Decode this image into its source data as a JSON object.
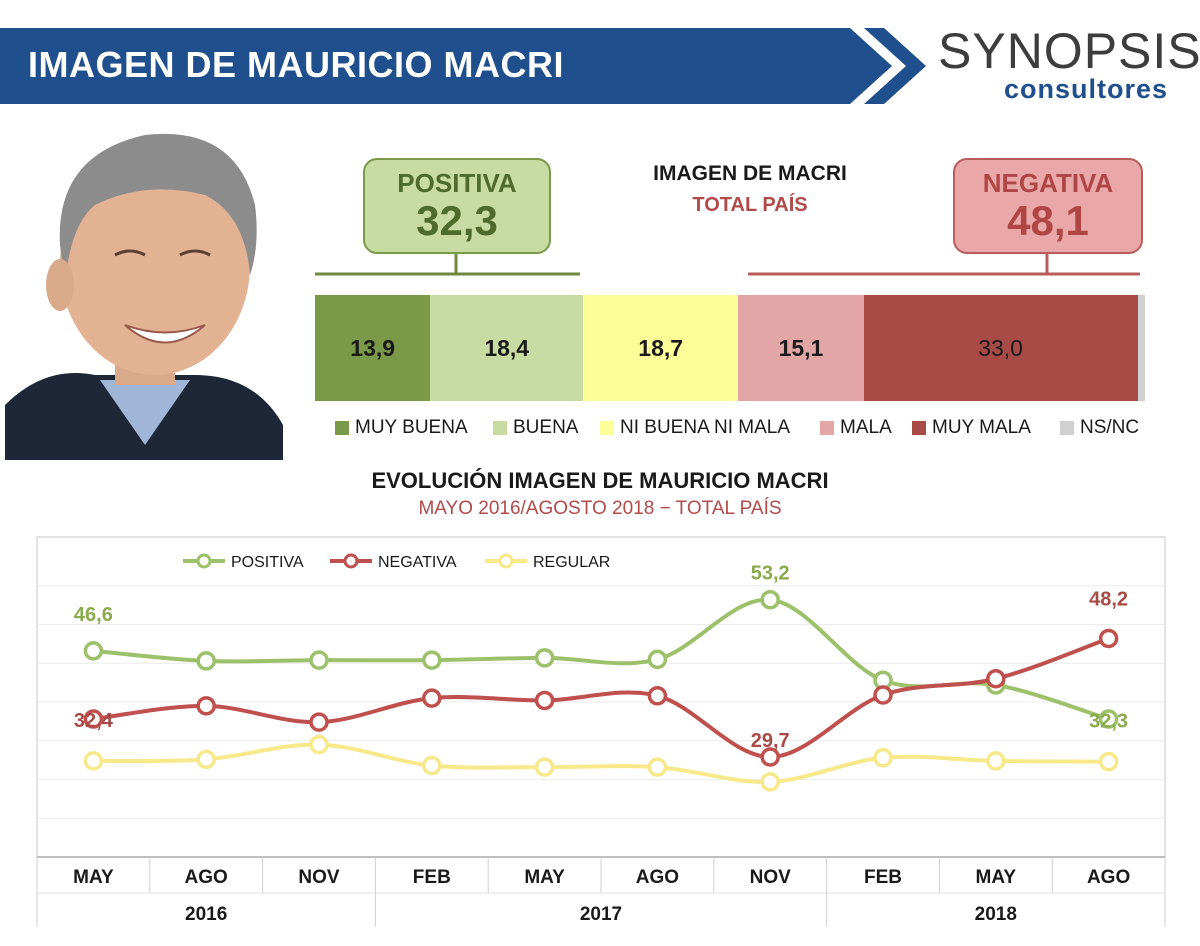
{
  "header": {
    "title": "IMAGEN DE MAURICIO MACRI",
    "logo_main": "SYNOPSIS",
    "logo_sub": "consultores"
  },
  "summary": {
    "title": "IMAGEN DE MACRI",
    "subtitle": "TOTAL PAÍS",
    "positive_label": "POSITIVA",
    "positive_value": "32,3",
    "negative_label": "NEGATIVA",
    "negative_value": "48,1"
  },
  "stacked_bar": {
    "segments": [
      {
        "label": "MUY BUENA",
        "value": 13.9,
        "text": "13,9",
        "color": "#7a9a4a"
      },
      {
        "label": "BUENA",
        "value": 18.4,
        "text": "18,4",
        "color": "#c8dba2"
      },
      {
        "label": "NI BUENA NI MALA",
        "value": 18.7,
        "text": "18,7",
        "color": "#fefe99"
      },
      {
        "label": "MALA",
        "value": 15.1,
        "text": "15,1",
        "color": "#e3a6a6"
      },
      {
        "label": "MUY MALA",
        "value": 33.0,
        "text": "33,0",
        "color": "#a84a46"
      },
      {
        "label": "NS/NC",
        "value": 0.9,
        "text": "",
        "color": "#d0d0d0"
      }
    ]
  },
  "chart_data": {
    "type": "line",
    "title": "EVOLUCIÓN IMAGEN DE MAURICIO MACRI",
    "subtitle": "MAYO 2016/AGOSTO 2018 − TOTAL PAÍS",
    "x": [
      "MAY",
      "AGO",
      "NOV",
      "FEB",
      "MAY",
      "AGO",
      "NOV",
      "FEB",
      "MAY",
      "AGO"
    ],
    "year_groups": [
      {
        "label": "2016",
        "start": 0,
        "end": 2
      },
      {
        "label": "2017",
        "start": 3,
        "end": 6
      },
      {
        "label": "2018",
        "start": 7,
        "end": 9
      }
    ],
    "ylim": [
      20,
      60
    ],
    "grid": true,
    "legend_position": "top-left",
    "series": [
      {
        "name": "POSITIVA",
        "color": "#9dc06b",
        "values": [
          46.6,
          45.3,
          45.4,
          45.4,
          45.7,
          45.5,
          53.2,
          42.8,
          42.2,
          37.8
        ]
      },
      {
        "name": "NEGATIVA",
        "color": "#c0504d",
        "values": [
          37.8,
          39.5,
          37.4,
          40.5,
          40.2,
          40.8,
          32.9,
          40.9,
          43.0,
          48.2
        ]
      },
      {
        "name": "REGULAR",
        "color": "#f7e98a",
        "values": [
          32.4,
          32.6,
          34.5,
          31.8,
          31.6,
          31.6,
          29.7,
          32.8,
          32.4,
          32.3
        ]
      }
    ],
    "data_labels": [
      {
        "series": 0,
        "index": 0,
        "text": "46,6",
        "color": "#8aaa4e",
        "dx": 0,
        "dy": -30
      },
      {
        "series": 0,
        "index": 6,
        "text": "53,2",
        "color": "#8aaa4e",
        "dx": 0,
        "dy": -20
      },
      {
        "series": 1,
        "index": 9,
        "text": "48,2",
        "color": "#a84a46",
        "dx": 0,
        "dy": -33
      },
      {
        "series": 2,
        "index": 0,
        "text": "32,4",
        "color": "#a84a46",
        "dx": 0,
        "dy": -34
      },
      {
        "series": 2,
        "index": 6,
        "text": "29,7",
        "color": "#a84a46",
        "dx": 0,
        "dy": -35
      },
      {
        "series": 2,
        "index": 9,
        "text": "32,3",
        "color": "#8aaa4e",
        "dx": 0,
        "dy": -34
      }
    ]
  }
}
